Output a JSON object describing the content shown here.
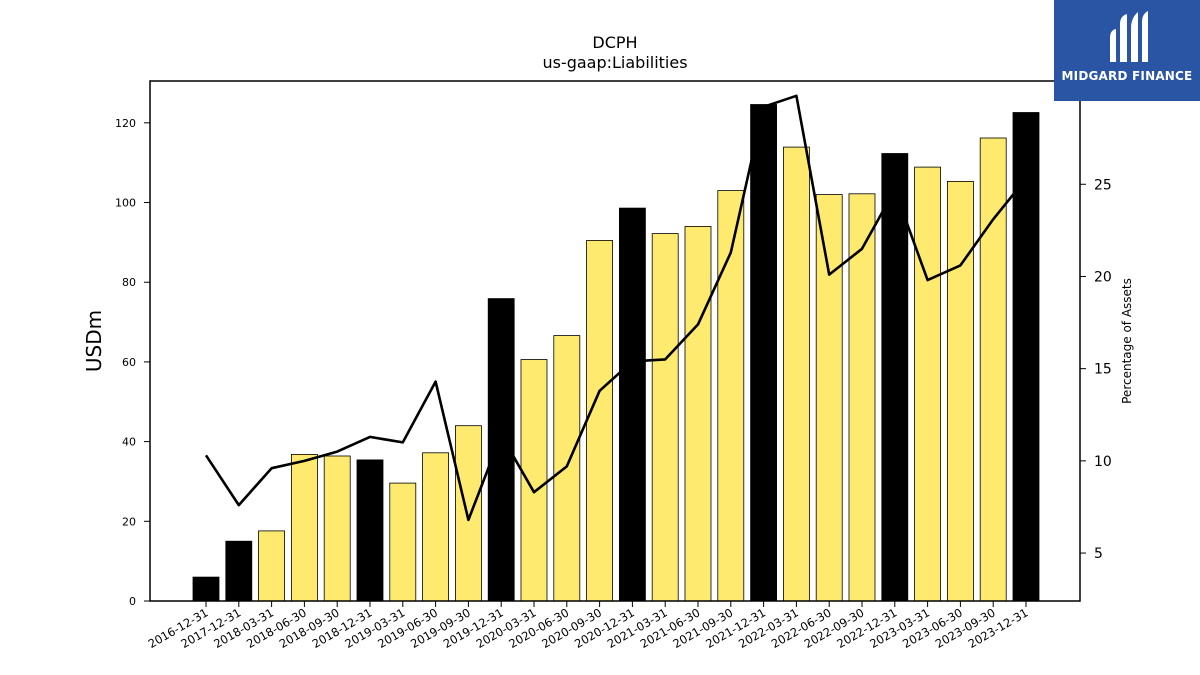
{
  "brand": {
    "name": "MIDGARD FINANCE",
    "color": "#2a55a5"
  },
  "chart_data": {
    "type": "bar",
    "title": "DCPH",
    "subtitle": "us-gaap:Liabilities",
    "ylabel": "USDm",
    "y2label": "Percentage of Assets",
    "ylim": [
      0,
      130.5
    ],
    "y2lim": [
      2.4,
      30.6
    ],
    "yticks": [
      0,
      20,
      40,
      60,
      80,
      100,
      120
    ],
    "y2ticks": [
      5,
      10,
      15,
      20,
      25
    ],
    "colors": {
      "annual": "#000000",
      "quarter": "#ffea70",
      "line": "#000000"
    },
    "categories": [
      "2016-12-31",
      "2017-12-31",
      "2018-03-31",
      "2018-06-30",
      "2018-09-30",
      "2018-12-31",
      "2019-03-31",
      "2019-06-30",
      "2019-09-30",
      "2019-12-31",
      "2020-03-31",
      "2020-06-30",
      "2020-09-30",
      "2020-12-31",
      "2021-03-31",
      "2021-06-30",
      "2021-09-30",
      "2021-12-31",
      "2022-03-31",
      "2022-06-30",
      "2022-09-30",
      "2022-12-31",
      "2023-03-31",
      "2023-06-30",
      "2023-09-30",
      "2023-12-31"
    ],
    "series": [
      {
        "type": "bar",
        "values": [
          6.0,
          15.0,
          17.6,
          36.8,
          36.4,
          35.4,
          29.6,
          37.2,
          44.0,
          75.9,
          60.6,
          66.6,
          90.5,
          98.6,
          92.2,
          94.0,
          103.0,
          124.6,
          113.9,
          102.0,
          102.2,
          112.3,
          108.9,
          105.3,
          116.2,
          122.6
        ],
        "annual": [
          true,
          true,
          false,
          false,
          false,
          true,
          false,
          false,
          false,
          true,
          false,
          false,
          false,
          true,
          false,
          false,
          false,
          true,
          false,
          false,
          false,
          true,
          false,
          false,
          false,
          true
        ]
      },
      {
        "type": "line",
        "axis": "right",
        "values": [
          10.3,
          7.6,
          9.6,
          10.0,
          10.5,
          11.3,
          11.0,
          14.3,
          6.8,
          11.4,
          8.3,
          9.7,
          13.8,
          15.4,
          15.5,
          17.4,
          21.3,
          29.2,
          29.8,
          20.1,
          21.5,
          24.7,
          19.8,
          20.6,
          23.1,
          25.3
        ]
      }
    ],
    "grid": false,
    "legend": "none"
  }
}
